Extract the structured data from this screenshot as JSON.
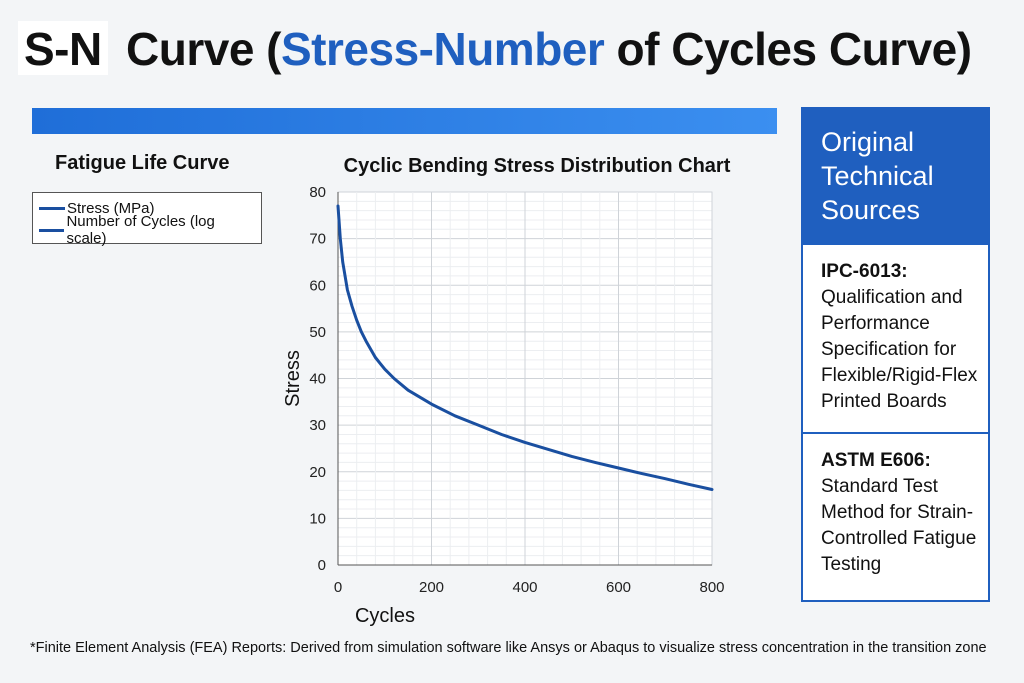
{
  "title": {
    "part1": "S-N",
    "part2": " Curve (",
    "highlight": "Stress-Number",
    "part3": " of Cycles Curve)"
  },
  "left_heading": "Fatigue Life Curve",
  "legend": [
    "Stress (MPa)",
    "Number of Cycles (log scale)"
  ],
  "colors": {
    "accent": "#1f5fbf",
    "curve": "#1a4fa0",
    "bar": "#2f80e6"
  },
  "chart_data": {
    "type": "line",
    "title": "Cyclic Bending Stress Distribution Chart",
    "xlabel": "Cycles",
    "ylabel": "Stress",
    "xlim": [
      0,
      800
    ],
    "ylim": [
      0,
      80
    ],
    "xticks": [
      0,
      200,
      400,
      600,
      800
    ],
    "yticks": [
      0,
      10,
      20,
      30,
      40,
      50,
      60,
      70,
      80
    ],
    "grid": true,
    "series": [
      {
        "name": "Stress (MPa)",
        "x": [
          0,
          5,
          10,
          20,
          30,
          40,
          50,
          60,
          80,
          100,
          120,
          150,
          200,
          250,
          300,
          350,
          400,
          450,
          500,
          550,
          600,
          650,
          700,
          750,
          800
        ],
        "y": [
          77,
          70,
          65,
          59,
          55.5,
          52.5,
          50,
          48,
          44.5,
          42,
          40,
          37.5,
          34.5,
          32,
          30,
          28,
          26.3,
          24.8,
          23.3,
          22,
          20.8,
          19.6,
          18.5,
          17.3,
          16.2
        ]
      }
    ]
  },
  "sidebar": {
    "heading": "Original Technical Sources",
    "sources": [
      {
        "code": "IPC-6013:",
        "description": "Qualification and Performance Specification for Flexible/Rigid-Flex Printed Boards"
      },
      {
        "code": "ASTM E606:",
        "description": "Standard Test Method for Strain-Controlled Fatigue Testing"
      }
    ]
  },
  "footnote": "*Finite Element Analysis (FEA) Reports: Derived from simulation software like Ansys or Abaqus to visualize stress concentration in the transition zone"
}
